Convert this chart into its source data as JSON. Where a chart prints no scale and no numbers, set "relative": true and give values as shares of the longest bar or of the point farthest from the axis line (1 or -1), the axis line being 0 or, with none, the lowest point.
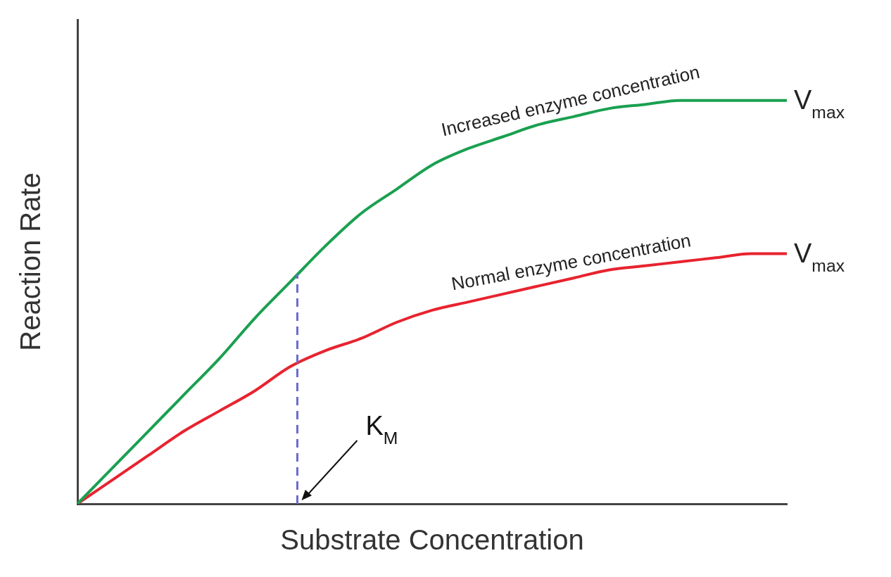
{
  "chart_data": {
    "type": "line",
    "relative": true,
    "xlabel": "Substrate Concentration",
    "ylabel": "Reaction Rate",
    "categories": [
      null,
      null,
      null,
      null,
      null,
      null,
      null,
      null,
      null,
      null,
      null,
      null,
      null,
      null,
      null,
      null,
      null,
      null,
      null,
      null,
      null
    ],
    "series": [
      {
        "name": "Increased enzyme concentration",
        "color": "#1aa050",
        "values": [
          0,
          0.09,
          0.18,
          0.27,
          0.36,
          0.46,
          0.55,
          0.64,
          0.72,
          0.78,
          0.84,
          0.88,
          0.91,
          0.94,
          0.96,
          0.98,
          0.99,
          1.0,
          1.0,
          1.0,
          1.0
        ]
      },
      {
        "name": "Normal enzyme concentration",
        "color": "#e8232f",
        "values": [
          0,
          0.06,
          0.12,
          0.18,
          0.23,
          0.28,
          0.34,
          0.38,
          0.41,
          0.45,
          0.48,
          0.5,
          0.52,
          0.54,
          0.56,
          0.58,
          0.59,
          0.6,
          0.61,
          0.62,
          0.62
        ]
      }
    ],
    "annotations": [
      "V$_{max}$",
      "V$_{max}$",
      "K$_{M}$"
    ],
    "legend": false,
    "grid": false,
    "marker": "none",
    "line_style": "solid"
  }
}
